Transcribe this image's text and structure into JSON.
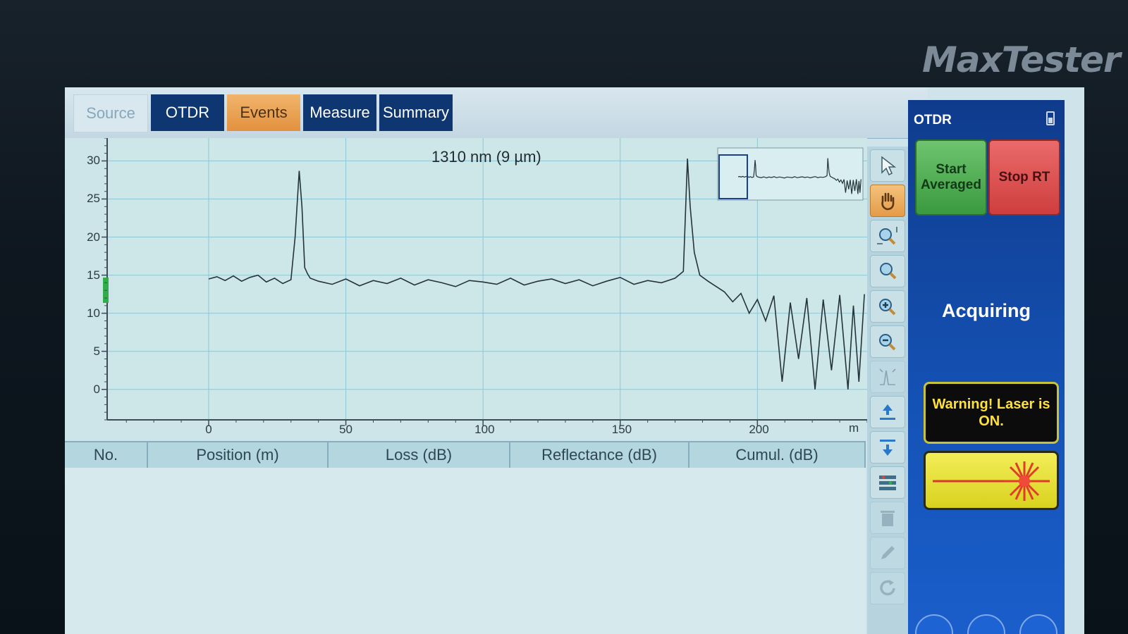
{
  "brand": "MaxTester",
  "tabs": [
    {
      "label": "Source"
    },
    {
      "label": "OTDR"
    },
    {
      "label": "Events"
    },
    {
      "label": "Measure"
    },
    {
      "label": "Summary"
    }
  ],
  "table": {
    "columns": [
      "No.",
      "Position (m)",
      "Loss (dB)",
      "Reflectance (dB)",
      "Cumul. (dB)"
    ],
    "rows": []
  },
  "panel": {
    "title": "OTDR",
    "start_button": "Start Averaged",
    "stop_button": "Stop RT",
    "status": "Acquiring",
    "warning": "Warning! Laser is ON."
  },
  "tools": [
    {
      "icon": "pointer-icon"
    },
    {
      "icon": "hand-pan-icon",
      "active": true
    },
    {
      "icon": "zoom-window-icon"
    },
    {
      "icon": "zoom-1to1-icon"
    },
    {
      "icon": "zoom-in-icon"
    },
    {
      "icon": "zoom-out-icon"
    },
    {
      "icon": "fit-view-icon",
      "disabled": true
    },
    {
      "icon": "arrow-up-icon"
    },
    {
      "icon": "arrow-down-icon"
    },
    {
      "icon": "event-table-icon"
    },
    {
      "icon": "trash-icon",
      "disabled": true
    },
    {
      "icon": "edit-icon",
      "disabled": true
    },
    {
      "icon": "refresh-icon",
      "disabled": true
    }
  ],
  "colors": {
    "tab_active": "#0e3772",
    "tab_events": "#e2913e",
    "panel_bg": "#1553b7",
    "start_green": "#3a9a3f",
    "stop_red": "#cf3e3e",
    "warning_yellow": "#ffe13a"
  },
  "chart_data": {
    "type": "line",
    "title": "1310 nm (9 µm)",
    "xlabel": "",
    "x_unit": "m",
    "ylabel": "",
    "xlim": [
      -37,
      240
    ],
    "ylim": [
      -4,
      33
    ],
    "x_ticks": [
      0,
      50,
      100,
      150,
      200
    ],
    "y_ticks": [
      0,
      5,
      10,
      15,
      20,
      25,
      30
    ],
    "grid": true,
    "series": [
      {
        "x": [
          0,
          3,
          6,
          9,
          12,
          15,
          18,
          21,
          24,
          27,
          30,
          31.5,
          33,
          34,
          35,
          36,
          37,
          40,
          45,
          50,
          55,
          60,
          65,
          70,
          75,
          80,
          85,
          90,
          95,
          100,
          105,
          110,
          115,
          120,
          125,
          130,
          135,
          140,
          145,
          150,
          155,
          160,
          165,
          170,
          173,
          174.5,
          175.5,
          177,
          179,
          182,
          185,
          188,
          191,
          194,
          197,
          200,
          203,
          206,
          209,
          212,
          215,
          218,
          221,
          224,
          227,
          230,
          233,
          235,
          237,
          239
        ],
        "y": [
          14.5,
          14.8,
          14.3,
          14.9,
          14.2,
          14.7,
          15.0,
          14.1,
          14.6,
          13.9,
          14.4,
          20.0,
          28.7,
          24.0,
          16.0,
          15.2,
          14.6,
          14.2,
          13.8,
          14.5,
          13.6,
          14.3,
          13.9,
          14.6,
          13.7,
          14.4,
          14.0,
          13.5,
          14.3,
          14.1,
          13.8,
          14.6,
          13.7,
          14.2,
          14.5,
          13.9,
          14.4,
          13.6,
          14.2,
          14.7,
          13.8,
          14.3,
          14.0,
          14.6,
          15.5,
          30.3,
          24.0,
          18.0,
          15.0,
          14.2,
          13.5,
          12.8,
          11.5,
          12.6,
          10.0,
          11.8,
          9.0,
          12.3,
          1.0,
          11.4,
          4.0,
          12.0,
          0.0,
          11.8,
          2.5,
          12.4,
          0.0,
          11.0,
          1.0,
          12.5
        ]
      }
    ]
  }
}
